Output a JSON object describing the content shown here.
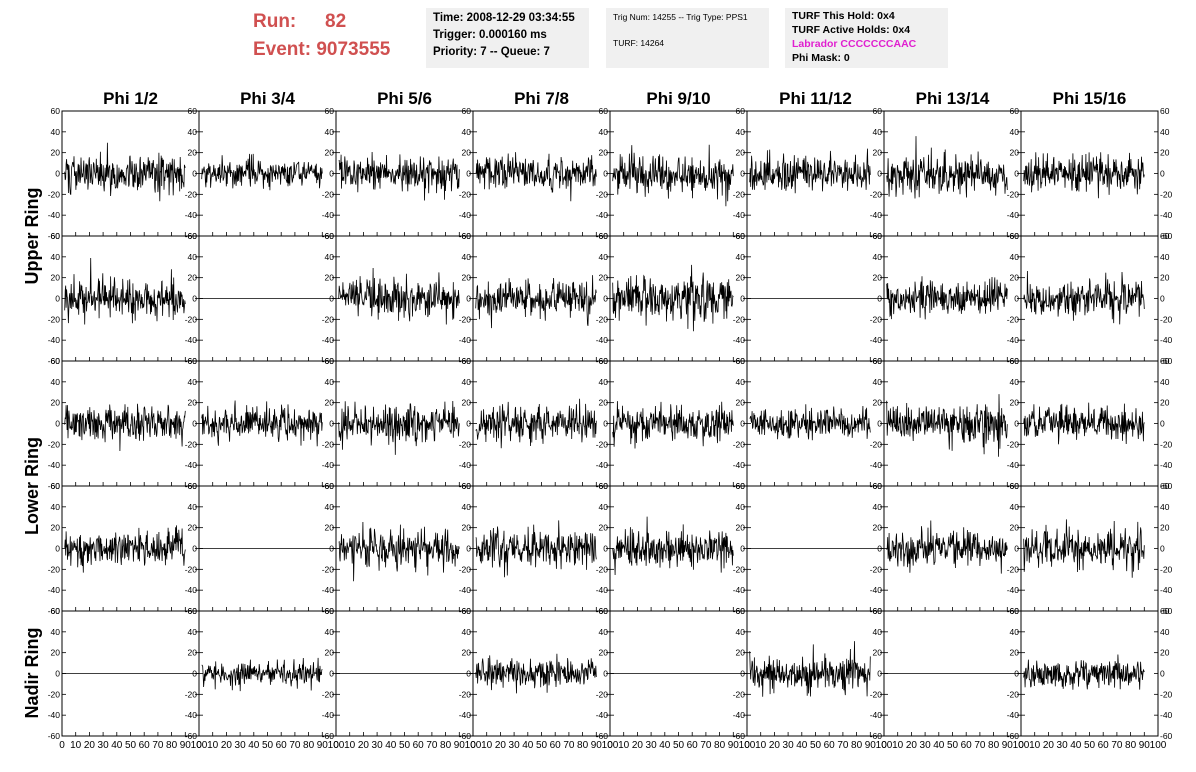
{
  "header": {
    "run_label": "Run:",
    "run_value": "82",
    "event_label": "Event:",
    "event_value": "9073555",
    "box1": [
      "Time: 2008-12-29 03:34:55",
      "Trigger: 0.000160 ms",
      "Priority: 7 -- Queue: 7"
    ],
    "box2": [
      "Trig Num: 14255 -- Trig Type: PPS1",
      "TURF: 14264"
    ],
    "box3": [
      "TURF This Hold: 0x4",
      "TURF Active Holds: 0x4",
      "Labrador CCCCCCCAAC",
      "Phi Mask: 0"
    ]
  },
  "colors": {
    "run_text": "#d05050",
    "labrador": "#e020d0",
    "info_bg": "#f0f0f0"
  },
  "chart_data": {
    "type": "line",
    "columns": [
      "Phi 1/2",
      "Phi 3/4",
      "Phi 5/6",
      "Phi 7/8",
      "Phi 9/10",
      "Phi 11/12",
      "Phi 13/14",
      "Phi 15/16"
    ],
    "row_groups": [
      "Upper Ring",
      "Lower Ring",
      "Nadir Ring"
    ],
    "xlim": [
      0,
      100
    ],
    "ylim": [
      -60,
      60
    ],
    "xticks": [
      "0",
      "10",
      "20",
      "30",
      "40",
      "50",
      "60",
      "70",
      "80",
      "90",
      "100"
    ],
    "yticks": [
      "-60",
      "-40",
      "-20",
      "0",
      "20",
      "40",
      "60"
    ],
    "panels": [
      {
        "row": 0,
        "col": 0,
        "mode": "noise",
        "amp": 14,
        "seed": 101
      },
      {
        "row": 0,
        "col": 1,
        "mode": "noise",
        "amp": 10,
        "seed": 102
      },
      {
        "row": 0,
        "col": 2,
        "mode": "noise",
        "amp": 13,
        "seed": 103
      },
      {
        "row": 0,
        "col": 3,
        "mode": "noise",
        "amp": 12,
        "seed": 104
      },
      {
        "row": 0,
        "col": 4,
        "mode": "noise",
        "amp": 15,
        "seed": 105
      },
      {
        "row": 0,
        "col": 5,
        "mode": "noise",
        "amp": 13,
        "seed": 106
      },
      {
        "row": 0,
        "col": 6,
        "mode": "noise",
        "amp": 15,
        "seed": 107
      },
      {
        "row": 0,
        "col": 7,
        "mode": "noise",
        "amp": 13,
        "seed": 108
      },
      {
        "row": 1,
        "col": 0,
        "mode": "noise",
        "amp": 15,
        "seed": 201
      },
      {
        "row": 1,
        "col": 1,
        "mode": "flat"
      },
      {
        "row": 1,
        "col": 2,
        "mode": "noise",
        "amp": 14,
        "seed": 203
      },
      {
        "row": 1,
        "col": 3,
        "mode": "noise",
        "amp": 15,
        "seed": 204
      },
      {
        "row": 1,
        "col": 4,
        "mode": "noise",
        "amp": 17,
        "seed": 205
      },
      {
        "row": 1,
        "col": 5,
        "mode": "flat"
      },
      {
        "row": 1,
        "col": 6,
        "mode": "noise",
        "amp": 13,
        "seed": 207
      },
      {
        "row": 1,
        "col": 7,
        "mode": "noise",
        "amp": 14,
        "seed": 208
      },
      {
        "row": 2,
        "col": 0,
        "mode": "noise",
        "amp": 13,
        "seed": 301
      },
      {
        "row": 2,
        "col": 1,
        "mode": "noise",
        "amp": 13,
        "seed": 302
      },
      {
        "row": 2,
        "col": 2,
        "mode": "noise",
        "amp": 14,
        "seed": 303
      },
      {
        "row": 2,
        "col": 3,
        "mode": "noise",
        "amp": 13,
        "seed": 304
      },
      {
        "row": 2,
        "col": 4,
        "mode": "noise",
        "amp": 13,
        "seed": 305
      },
      {
        "row": 2,
        "col": 5,
        "mode": "noise",
        "amp": 11,
        "seed": 306
      },
      {
        "row": 2,
        "col": 6,
        "mode": "noise",
        "amp": 15,
        "seed": 307
      },
      {
        "row": 2,
        "col": 7,
        "mode": "noise",
        "amp": 13,
        "seed": 308
      },
      {
        "row": 3,
        "col": 0,
        "mode": "noise",
        "amp": 13,
        "seed": 401
      },
      {
        "row": 3,
        "col": 1,
        "mode": "flat"
      },
      {
        "row": 3,
        "col": 2,
        "mode": "noise",
        "amp": 13,
        "seed": 403
      },
      {
        "row": 3,
        "col": 3,
        "mode": "noise",
        "amp": 14,
        "seed": 404
      },
      {
        "row": 3,
        "col": 4,
        "mode": "noise",
        "amp": 15,
        "seed": 405
      },
      {
        "row": 3,
        "col": 5,
        "mode": "flat"
      },
      {
        "row": 3,
        "col": 6,
        "mode": "noise",
        "amp": 13,
        "seed": 407
      },
      {
        "row": 3,
        "col": 7,
        "mode": "noise",
        "amp": 14,
        "seed": 408
      },
      {
        "row": 4,
        "col": 0,
        "mode": "flat"
      },
      {
        "row": 4,
        "col": 1,
        "mode": "noise",
        "amp": 9,
        "seed": 502
      },
      {
        "row": 4,
        "col": 2,
        "mode": "flat"
      },
      {
        "row": 4,
        "col": 3,
        "mode": "noise",
        "amp": 11,
        "seed": 504
      },
      {
        "row": 4,
        "col": 4,
        "mode": "flat"
      },
      {
        "row": 4,
        "col": 5,
        "mode": "noise",
        "amp": 14,
        "seed": 506
      },
      {
        "row": 4,
        "col": 6,
        "mode": "flat"
      },
      {
        "row": 4,
        "col": 7,
        "mode": "noise",
        "amp": 11,
        "seed": 508
      }
    ]
  }
}
